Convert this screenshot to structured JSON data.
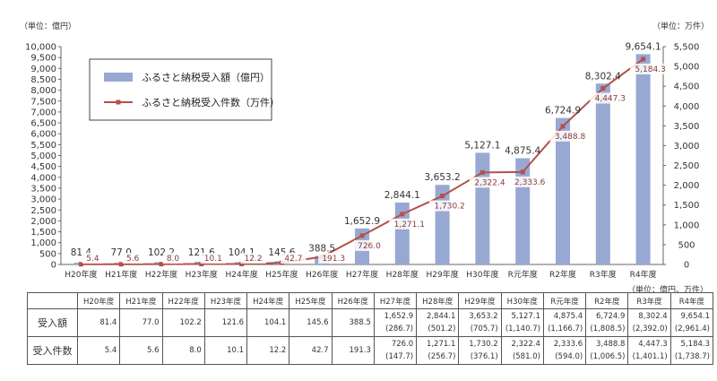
{
  "units": {
    "left": "（単位：億円）",
    "right": "（単位：万件）",
    "table": "（単位：億円、万件）"
  },
  "chart_data": {
    "type": "bar",
    "categories": [
      "H20年度",
      "H21年度",
      "H22年度",
      "H23年度",
      "H24年度",
      "H25年度",
      "H26年度",
      "H27年度",
      "H28年度",
      "H29年度",
      "H30年度",
      "R元年度",
      "R2年度",
      "R3年度",
      "R4年度"
    ],
    "series": [
      {
        "name": "ふるさと納税受入額（億円）",
        "type": "bar",
        "axis": "left",
        "color": "#97a9d2",
        "values": [
          81.4,
          77.0,
          102.2,
          121.6,
          104.1,
          145.6,
          388.5,
          1652.9,
          2844.1,
          3653.2,
          5127.1,
          4875.4,
          6724.9,
          8302.4,
          9654.1
        ],
        "labels": [
          "81.4",
          "77.0",
          "102.2",
          "121.6",
          "104.1",
          "145.6",
          "388.5",
          "1,652.9",
          "2,844.1",
          "3,653.2",
          "5,127.1",
          "4,875.4",
          "6,724.9",
          "8,302.4",
          "9,654.1"
        ]
      },
      {
        "name": "ふるさと納税受入件数（万件）",
        "type": "line",
        "axis": "right",
        "color": "#b5504b",
        "values": [
          5.4,
          5.6,
          8.0,
          10.1,
          12.2,
          42.7,
          191.3,
          726.0,
          1271.1,
          1730.2,
          2322.4,
          2333.6,
          3488.8,
          4447.3,
          5184.3
        ],
        "labels": [
          "5.4",
          "5.6",
          "8.0",
          "10.1",
          "12.2",
          "42.7",
          "191.3",
          "726.0",
          "1,271.1",
          "1,730.2",
          "2,322.4",
          "2,333.6",
          "3,488.8",
          "4,447.3",
          "5,184.3"
        ]
      }
    ],
    "y_left": {
      "min": 0,
      "max": 10000,
      "step": 500,
      "ticks": [
        "0",
        "500",
        "1,000",
        "1,500",
        "2,000",
        "2,500",
        "3,000",
        "3,500",
        "4,000",
        "4,500",
        "5,000",
        "5,500",
        "6,000",
        "6,500",
        "7,000",
        "7,500",
        "8,000",
        "8,500",
        "9,000",
        "9,500",
        "10,000"
      ]
    },
    "y_right": {
      "min": 0,
      "max": 5500,
      "step": 500,
      "ticks": [
        "0",
        "500",
        "1,000",
        "1,500",
        "2,000",
        "2,500",
        "3,000",
        "3,500",
        "4,000",
        "4,500",
        "5,000",
        "5,500"
      ]
    },
    "legend_position": "top-left",
    "grid": false
  },
  "table": {
    "header": [
      "H20年度",
      "H21年度",
      "H22年度",
      "H23年度",
      "H24年度",
      "H25年度",
      "H26年度",
      "H27年度",
      "H28年度",
      "H29年度",
      "H30年度",
      "R元年度",
      "R2年度",
      "R3年度",
      "R4年度"
    ],
    "rows": [
      {
        "label": "受入額",
        "cells": [
          [
            "81.4"
          ],
          [
            "77.0"
          ],
          [
            "102.2"
          ],
          [
            "121.6"
          ],
          [
            "104.1"
          ],
          [
            "145.6"
          ],
          [
            "388.5"
          ],
          [
            "1,652.9",
            "(286.7)"
          ],
          [
            "2,844.1",
            "(501.2)"
          ],
          [
            "3,653.2",
            "(705.7)"
          ],
          [
            "5,127.1",
            "(1,140.7)"
          ],
          [
            "4,875.4",
            "(1,166.7)"
          ],
          [
            "6,724.9",
            "(1,808.5)"
          ],
          [
            "8,302.4",
            "(2,392.0)"
          ],
          [
            "9,654.1",
            "(2,961.4)"
          ]
        ]
      },
      {
        "label": "受入件数",
        "cells": [
          [
            "5.4"
          ],
          [
            "5.6"
          ],
          [
            "8.0"
          ],
          [
            "10.1"
          ],
          [
            "12.2"
          ],
          [
            "42.7"
          ],
          [
            "191.3"
          ],
          [
            "726.0",
            "(147.7)"
          ],
          [
            "1,271.1",
            "(256.7)"
          ],
          [
            "1,730.2",
            "(376.1)"
          ],
          [
            "2,322.4",
            "(581.0)"
          ],
          [
            "2,333.6",
            "(594.0)"
          ],
          [
            "3,488.8",
            "(1,006.5)"
          ],
          [
            "4,447.3",
            "(1,401.1)"
          ],
          [
            "5,184.3",
            "(1,738.7)"
          ]
        ]
      }
    ]
  }
}
